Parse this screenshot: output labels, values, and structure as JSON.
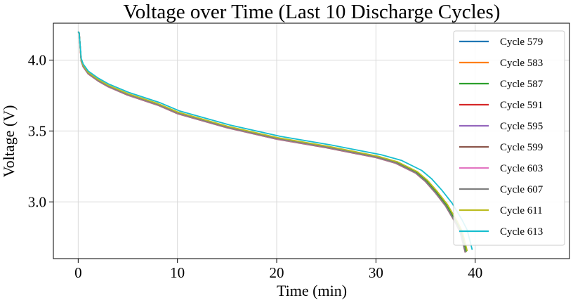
{
  "chart_data": {
    "type": "line",
    "title": "Voltage over Time (Last 10 Discharge Cycles)",
    "xlabel": "Time (min)",
    "ylabel": "Voltage (V)",
    "xlim": [
      -2.5,
      49.5
    ],
    "ylim": [
      2.6,
      4.26
    ],
    "xticks": [
      0,
      10,
      20,
      30,
      40
    ],
    "xtick_labels": [
      "0",
      "10",
      "20",
      "30",
      "40"
    ],
    "yticks": [
      3.0,
      3.5,
      4.0
    ],
    "ytick_labels": [
      "3.0",
      "3.5",
      "4.0"
    ],
    "grid": true,
    "legend_position": "top-right",
    "series": [
      {
        "name": "Cycle 579",
        "color": "#1f77b4",
        "end_time": 39.1,
        "offset": 0.0
      },
      {
        "name": "Cycle 583",
        "color": "#ff7f0e",
        "end_time": 39.1,
        "offset": 0.0
      },
      {
        "name": "Cycle 587",
        "color": "#2ca02c",
        "end_time": 39.1,
        "offset": -0.003
      },
      {
        "name": "Cycle 591",
        "color": "#d62728",
        "end_time": 39.0,
        "offset": -0.005
      },
      {
        "name": "Cycle 595",
        "color": "#9467bd",
        "end_time": 39.0,
        "offset": -0.005
      },
      {
        "name": "Cycle 599",
        "color": "#8c564b",
        "end_time": 39.0,
        "offset": -0.008
      },
      {
        "name": "Cycle 603",
        "color": "#e377c2",
        "end_time": 39.0,
        "offset": -0.006
      },
      {
        "name": "Cycle 607",
        "color": "#7f7f7f",
        "end_time": 39.0,
        "offset": -0.004
      },
      {
        "name": "Cycle 611",
        "color": "#bcbd22",
        "end_time": 39.2,
        "offset": 0.003
      },
      {
        "name": "Cycle 613",
        "color": "#17becf",
        "end_time": 39.7,
        "offset": 0.012
      }
    ],
    "base_curve": {
      "time": [
        0.0,
        0.1,
        0.3,
        0.5,
        1,
        2,
        3,
        5,
        8,
        10,
        15,
        20,
        25,
        30,
        32,
        34,
        35,
        36,
        37,
        38,
        38.5,
        39.0
      ],
      "voltage": [
        4.2,
        4.19,
        4.0,
        3.96,
        3.91,
        3.86,
        3.82,
        3.76,
        3.69,
        3.63,
        3.53,
        3.45,
        3.39,
        3.32,
        3.28,
        3.21,
        3.15,
        3.07,
        2.98,
        2.86,
        2.79,
        2.65
      ]
    }
  }
}
